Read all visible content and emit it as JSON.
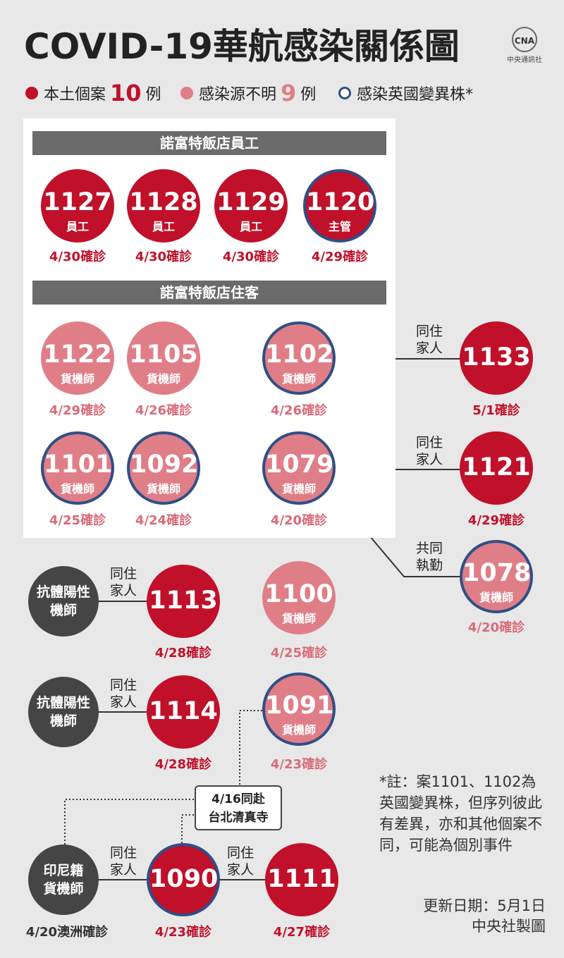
{
  "title": "COVID-19華航感染關係圖",
  "logo": {
    "mark": "CNA",
    "name": "中央通訊社"
  },
  "legend": {
    "local": {
      "label": "本土個案",
      "count": "10",
      "unit": "例"
    },
    "unknown": {
      "label": "感染源不明",
      "count": "9",
      "unit": "例"
    },
    "variant": {
      "label": "感染英國變異株*"
    }
  },
  "sections": {
    "staff": "諾富特飯店員工",
    "guests": "諾富特飯店住客"
  },
  "cases": {
    "c1127": {
      "id": "1127",
      "role": "員工",
      "date": "4/30確診"
    },
    "c1128": {
      "id": "1128",
      "role": "員工",
      "date": "4/30確診"
    },
    "c1129": {
      "id": "1129",
      "role": "員工",
      "date": "4/30確診"
    },
    "c1120": {
      "id": "1120",
      "role": "主管",
      "date": "4/29確診"
    },
    "c1122": {
      "id": "1122",
      "role": "貨機師",
      "date": "4/29確診"
    },
    "c1105": {
      "id": "1105",
      "role": "貨機師",
      "date": "4/26確診"
    },
    "c1102": {
      "id": "1102",
      "role": "貨機師",
      "date": "4/26確診"
    },
    "c1133": {
      "id": "1133",
      "role": "",
      "date": "5/1確診"
    },
    "c1101": {
      "id": "1101",
      "role": "貨機師",
      "date": "4/25確診"
    },
    "c1092": {
      "id": "1092",
      "role": "貨機師",
      "date": "4/24確診"
    },
    "c1079": {
      "id": "1079",
      "role": "貨機師",
      "date": "4/20確診"
    },
    "c1121": {
      "id": "1121",
      "role": "",
      "date": "4/29確診"
    },
    "c1078": {
      "id": "1078",
      "role": "貨機師",
      "date": "4/20確診"
    },
    "c1113": {
      "id": "1113",
      "role": "",
      "date": "4/28確診"
    },
    "c1100": {
      "id": "1100",
      "role": "貨機師",
      "date": "4/25確診"
    },
    "c1114": {
      "id": "1114",
      "role": "",
      "date": "4/28確診"
    },
    "c1091": {
      "id": "1091",
      "role": "貨機師",
      "date": "4/23確診"
    },
    "c1090": {
      "id": "1090",
      "role": "",
      "date": "4/23確診"
    },
    "c1111": {
      "id": "1111",
      "role": "",
      "date": "4/27確診"
    }
  },
  "others": {
    "pilot1": {
      "line1": "抗體陽性",
      "line2": "機師"
    },
    "pilot2": {
      "line1": "抗體陽性",
      "line2": "機師"
    },
    "indo": {
      "line1": "印尼籍",
      "line2": "貨機師",
      "date": "4/20澳洲確診"
    }
  },
  "relations": {
    "family": {
      "line1": "同住",
      "line2": "家人"
    },
    "cowork": {
      "line1": "共同",
      "line2": "執勤"
    }
  },
  "callout": {
    "line1": "4/16同赴",
    "line2": "台北清真寺"
  },
  "note": "*註：案1101、1102為英國變異株，但序列彼此有差異，亦和其他個案不同，可能為個別事件",
  "footer": {
    "updated": "更新日期：5月1日",
    "credit": "中央社製圖"
  },
  "colors": {
    "local": "#c0102a",
    "unknown": "#e07e87",
    "variant_ring": "#2f4f86",
    "gray": "#454545"
  }
}
